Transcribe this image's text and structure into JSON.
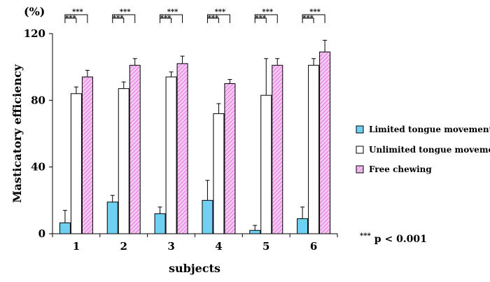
{
  "chart_data": {
    "type": "bar",
    "title": "",
    "xlabel": "subjects",
    "ylabel": "Masticatory efficiency",
    "unit_label": "(%)",
    "ylim": [
      0,
      120
    ],
    "yticks": [
      "0",
      "40",
      "80",
      "120"
    ],
    "categories": [
      "1",
      "2",
      "3",
      "4",
      "5",
      "6"
    ],
    "series": [
      {
        "name": "Limited tongue movements",
        "fill": "#6fd0f2",
        "pattern": "solid",
        "values": [
          6.5,
          19,
          12,
          20,
          2,
          9
        ],
        "errors": [
          7.5,
          4,
          4,
          12,
          3,
          7
        ]
      },
      {
        "name": "Unlimited tongue movements",
        "fill": "#ffffff",
        "pattern": "solid",
        "values": [
          84,
          87,
          94,
          72,
          83,
          101
        ],
        "errors": [
          4,
          4,
          3,
          6,
          22,
          4
        ]
      },
      {
        "name": "Free chewing",
        "fill": "#f39ef0",
        "pattern": "hatched",
        "values": [
          94,
          101,
          102,
          90,
          101,
          109
        ],
        "errors": [
          4,
          4,
          4.5,
          2.5,
          4,
          7
        ]
      }
    ],
    "significance_marker": "***",
    "significance_note_marker": "***",
    "significance_note": "p < 0.001",
    "legend_position": "right"
  }
}
